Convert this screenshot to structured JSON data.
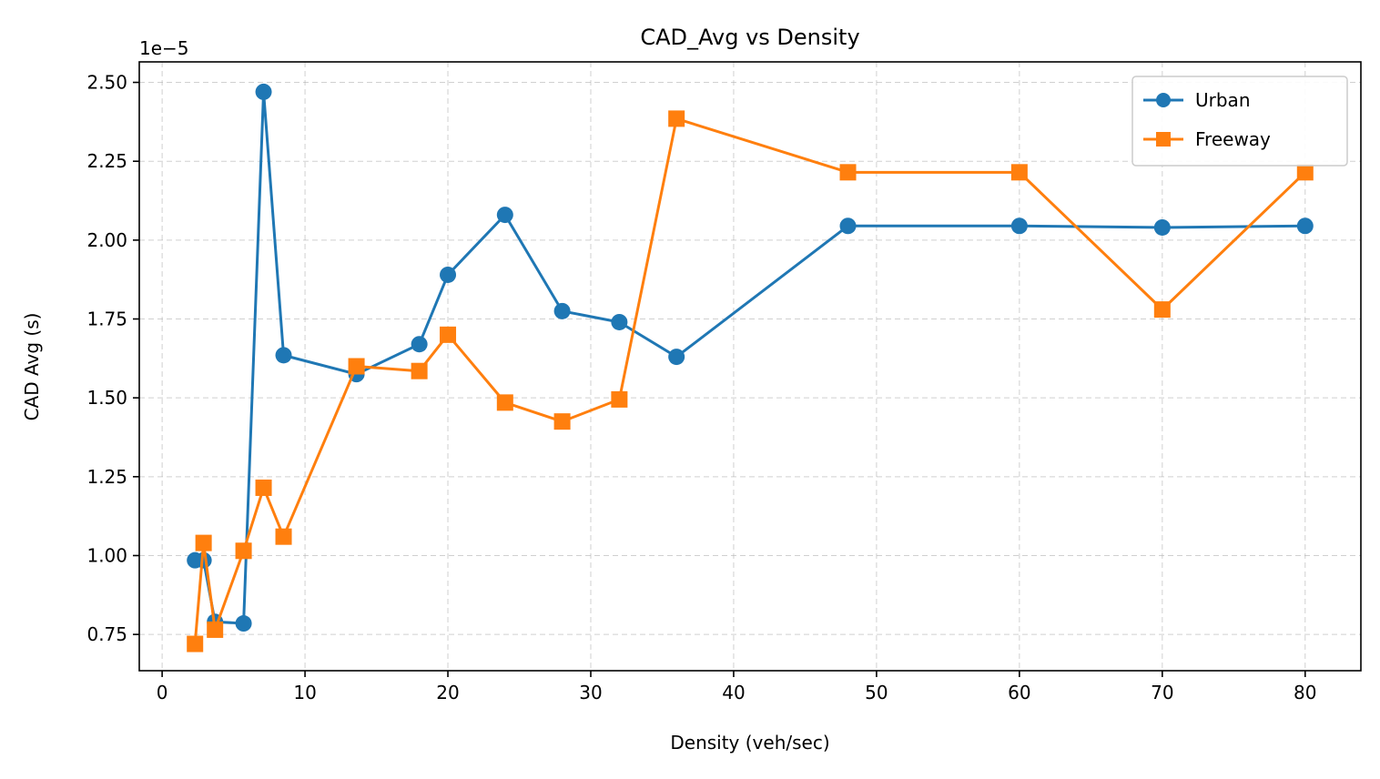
{
  "chart_data": {
    "type": "line",
    "title": "CAD_Avg vs Density",
    "xlabel": "Density (veh/sec)",
    "ylabel": "CAD Avg (s)",
    "y_multiplier_label": "1e−5",
    "xlim": [
      -1.6,
      83.9
    ],
    "ylim": [
      0.635,
      2.565
    ],
    "x_ticks": [
      0,
      10,
      20,
      30,
      40,
      50,
      60,
      70,
      80
    ],
    "x_tick_labels": [
      "0",
      "10",
      "20",
      "30",
      "40",
      "50",
      "60",
      "70",
      "80"
    ],
    "y_ticks": [
      0.75,
      1.0,
      1.25,
      1.5,
      1.75,
      2.0,
      2.25,
      2.5
    ],
    "y_tick_labels": [
      "0.75",
      "1.00",
      "1.25",
      "1.50",
      "1.75",
      "2.00",
      "2.25",
      "2.50"
    ],
    "grid": true,
    "legend_position": "top-right",
    "series": [
      {
        "name": "Urban",
        "color": "#1f77b4",
        "marker": "circle",
        "x": [
          2.3,
          2.9,
          3.7,
          5.7,
          7.1,
          8.5,
          13.6,
          18.0,
          20.0,
          24.0,
          28.0,
          32.0,
          36.0,
          48.0,
          60.0,
          70.0,
          80.0
        ],
        "y": [
          0.985,
          0.985,
          0.79,
          0.785,
          2.47,
          1.635,
          1.575,
          1.67,
          1.89,
          2.08,
          1.775,
          1.74,
          1.63,
          2.045,
          2.045,
          2.04,
          2.045
        ]
      },
      {
        "name": "Freeway",
        "color": "#ff7f0e",
        "marker": "square",
        "x": [
          2.3,
          2.9,
          3.7,
          5.7,
          7.1,
          8.5,
          13.6,
          18.0,
          20.0,
          24.0,
          28.0,
          32.0,
          36.0,
          48.0,
          60.0,
          70.0,
          80.0
        ],
        "y": [
          0.72,
          1.04,
          0.765,
          1.015,
          1.215,
          1.06,
          1.6,
          1.585,
          1.7,
          1.485,
          1.425,
          1.495,
          2.385,
          2.215,
          2.215,
          1.78,
          2.215
        ]
      }
    ]
  }
}
